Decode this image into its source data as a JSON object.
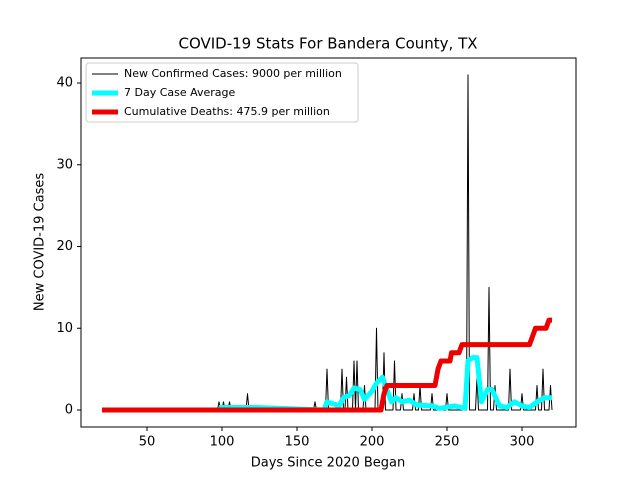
{
  "chart_data": {
    "type": "line",
    "title": "COVID-19 Stats For Bandera County, TX",
    "x_label": "Days Since 2020 Began",
    "y_label": "New COVID-19 Cases",
    "xlim": [
      6,
      336
    ],
    "xticks": [
      50,
      100,
      150,
      200,
      250,
      300
    ],
    "ylim": [
      -2.08,
      43.06
    ],
    "yticks": [
      0,
      10,
      20,
      30,
      40
    ],
    "legend": "upper left",
    "series": [
      {
        "name": "New Confirmed Cases: 9000 per million",
        "color": "#000000",
        "width": 1,
        "x": [
          20,
          97,
          98,
          99,
          100,
          101,
          102,
          104,
          105,
          106,
          116,
          117,
          118,
          161,
          162,
          163,
          169,
          170,
          171,
          179,
          180,
          181,
          182,
          183,
          184,
          187,
          188,
          189,
          190,
          191,
          194,
          195,
          196,
          202,
          203,
          204,
          207,
          208,
          209,
          214,
          215,
          216,
          219,
          220,
          221,
          227,
          228,
          229,
          231,
          232,
          233,
          239,
          240,
          241,
          249,
          250,
          251,
          263,
          264,
          265,
          269,
          270,
          271,
          277,
          278,
          279,
          281,
          282,
          283,
          291,
          292,
          293,
          299,
          300,
          301,
          309,
          310,
          311,
          313,
          314,
          315,
          318,
          319,
          320
        ],
        "values": [
          0,
          0,
          1,
          0,
          0,
          1,
          0,
          0,
          1,
          0,
          0,
          2,
          0,
          0,
          1,
          0,
          0,
          5,
          0,
          0,
          5,
          0,
          0,
          4,
          0,
          0,
          6,
          0,
          6,
          0,
          0,
          3,
          0,
          0,
          10,
          0,
          0,
          7,
          0,
          0,
          6,
          0,
          0,
          2,
          0,
          0,
          2,
          0,
          0,
          3,
          0,
          0,
          2,
          0,
          0,
          2,
          0,
          0,
          41,
          0,
          0,
          4,
          0,
          0,
          15,
          0,
          0,
          3,
          0,
          0,
          5,
          0,
          0,
          2,
          0,
          0,
          3,
          0,
          0,
          5,
          0,
          0,
          3,
          0
        ]
      },
      {
        "name": "7 Day Case Average",
        "color": "#00ffff",
        "width": 5,
        "x": [
          98,
          123,
          168,
          170,
          175,
          178,
          181,
          185,
          188,
          192,
          195,
          200,
          203,
          207,
          210,
          213,
          216,
          220,
          225,
          230,
          240,
          245,
          255,
          262,
          264,
          267,
          270,
          273,
          277,
          280,
          285,
          290,
          295,
          300,
          305,
          310,
          315,
          320
        ],
        "values": [
          0.3,
          0.3,
          0,
          1,
          0.7,
          0.5,
          1.5,
          1.8,
          2.7,
          2.5,
          1.3,
          2.3,
          3.3,
          4,
          2.5,
          1,
          1.5,
          1,
          1.2,
          0.6,
          0.5,
          0.2,
          0.5,
          0.2,
          6,
          6.4,
          6.4,
          1,
          2.5,
          2.5,
          0.5,
          0.3,
          1,
          0.5,
          0.3,
          1,
          1.5,
          1.5
        ]
      },
      {
        "name": "Cumulative Deaths: 475.9 per million",
        "color": "#ee0000",
        "width": 5,
        "x": [
          20,
          206,
          208,
          210,
          242,
          244,
          246,
          252,
          253,
          258,
          260,
          305,
          307,
          309,
          316,
          318,
          320
        ],
        "values": [
          0,
          0,
          2,
          3,
          3,
          5,
          6,
          6,
          7,
          7,
          8,
          8,
          9,
          10,
          10,
          11,
          11
        ]
      }
    ]
  }
}
